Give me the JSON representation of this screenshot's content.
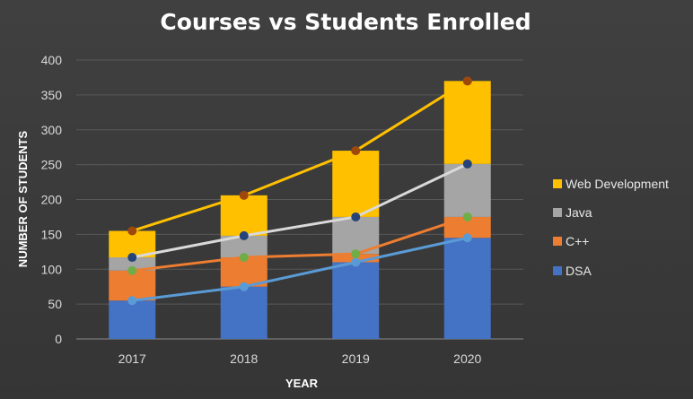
{
  "chart_data": {
    "type": "bar",
    "subtype": "stacked-bar-with-cumulative-lines",
    "title": "Courses vs Students Enrolled",
    "xlabel": "YEAR",
    "ylabel": "NUMBER OF STUDENTS",
    "categories": [
      "2017",
      "2018",
      "2019",
      "2020"
    ],
    "ylim": [
      0,
      400
    ],
    "yticks": [
      0,
      50,
      100,
      150,
      200,
      250,
      300,
      350,
      400
    ],
    "grid": true,
    "legend_position": "right",
    "series": [
      {
        "name": "DSA",
        "color": "#4472c4",
        "line_color": "#5b9bd5",
        "values": [
          55,
          75,
          110,
          145
        ],
        "cumulative": [
          55,
          75,
          110,
          145
        ]
      },
      {
        "name": "C++",
        "color": "#ed7d31",
        "line_color": "#ed7d31",
        "marker_color": "#70ad47",
        "values": [
          43,
          42,
          12,
          30
        ],
        "cumulative": [
          98,
          117,
          122,
          175
        ]
      },
      {
        "name": "Java",
        "color": "#a5a5a5",
        "line_color": "#d9d9d9",
        "marker_color": "#264478",
        "values": [
          19,
          31,
          53,
          76
        ],
        "cumulative": [
          117,
          148,
          175,
          251
        ]
      },
      {
        "name": "Web Development",
        "color": "#ffc000",
        "line_color": "#ffc000",
        "marker_color": "#9e480e",
        "values": [
          38,
          58,
          95,
          119
        ],
        "cumulative": [
          155,
          206,
          270,
          370
        ]
      }
    ]
  }
}
